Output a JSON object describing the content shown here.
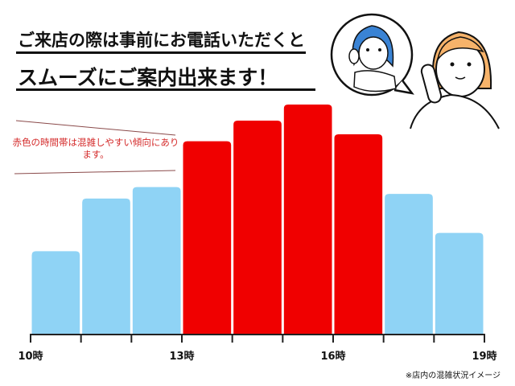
{
  "header": {
    "line1": "ご来店の際は事前にお電話いただくと",
    "line2": "スムーズにご案内出来ます！"
  },
  "annotation": "赤色の時間帯は混雑しやすい傾向にあります。",
  "footnote": "※店内の混雑状況イメージ",
  "colors": {
    "busy": "#f00000",
    "normal": "#8fd3f5",
    "annotation": "#d42a2a"
  },
  "illustration": {
    "icons": [
      "woman-on-phone-icon",
      "operator-on-phone-speech-bubble-icon"
    ]
  },
  "chart_data": {
    "type": "bar",
    "x_ticks": [
      "10時",
      "13時",
      "16時",
      "19時"
    ],
    "categories": [
      "10-11",
      "11-12",
      "12-13",
      "13-14",
      "14-15",
      "15-16",
      "16-17",
      "17-18",
      "18-19"
    ],
    "values": [
      36,
      59,
      64,
      84,
      93,
      100,
      87,
      61,
      44
    ],
    "busy": [
      false,
      false,
      false,
      true,
      true,
      true,
      true,
      false,
      false
    ],
    "xlim": [
      10,
      19
    ],
    "ylim": [
      0,
      100
    ],
    "grid": false
  }
}
